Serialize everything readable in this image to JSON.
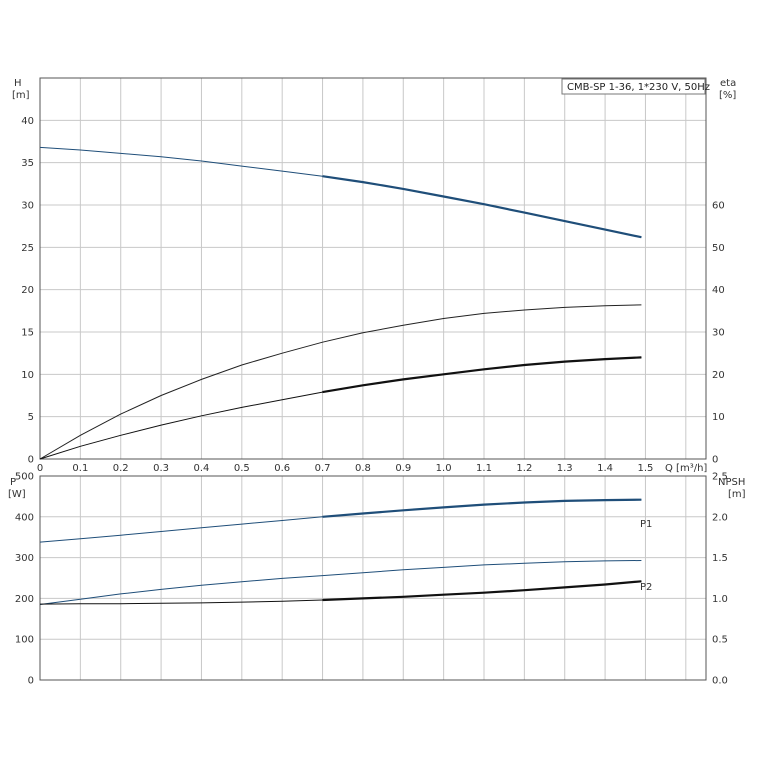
{
  "chart_data": [
    {
      "type": "line",
      "legend": "CMB-SP 1-36, 1*230 V, 50Hz",
      "legend_placement": "top-right",
      "grid": true,
      "xlabel": "Q [m³/h]",
      "xlim": [
        0,
        1.65
      ],
      "xticks": [
        "0",
        "0.1",
        "0.2",
        "0.3",
        "0.4",
        "0.5",
        "0.6",
        "0.7",
        "0.8",
        "0.9",
        "1.0",
        "1.1",
        "1.2",
        "1.3",
        "1.4",
        "1.5"
      ],
      "ylabel_left": "H",
      "yunit_left": "[m]",
      "ylim_left": [
        0,
        45
      ],
      "yticks_left": [
        "0",
        "5",
        "10",
        "15",
        "20",
        "25",
        "30",
        "35",
        "40"
      ],
      "ylabel_right": "eta",
      "yunit_right": "[%]",
      "ylim_right": [
        0,
        90
      ],
      "yticks_right": [
        "0",
        "10",
        "20",
        "30",
        "40",
        "50",
        "60"
      ],
      "series": [
        {
          "axis": "left",
          "color": "#1f4e79",
          "x": [
            0,
            0.1,
            0.2,
            0.3,
            0.4,
            0.5,
            0.6,
            0.7,
            0.8,
            0.9,
            1.0,
            1.1,
            1.2,
            1.3,
            1.4,
            1.49
          ],
          "values": [
            36.8,
            36.5,
            36.1,
            35.7,
            35.2,
            34.6,
            34.0,
            33.4,
            32.7,
            31.9,
            31.0,
            30.1,
            29.1,
            28.1,
            27.1,
            26.2
          ],
          "bold_from": 0.7
        },
        {
          "axis": "right",
          "color": "#222222",
          "x": [
            0,
            0.1,
            0.2,
            0.3,
            0.4,
            0.5,
            0.6,
            0.7,
            0.8,
            0.9,
            1.0,
            1.1,
            1.2,
            1.3,
            1.4,
            1.49
          ],
          "values": [
            0,
            5.6,
            10.6,
            15.0,
            18.8,
            22.2,
            25.0,
            27.6,
            29.8,
            31.6,
            33.2,
            34.4,
            35.2,
            35.8,
            36.2,
            36.4
          ],
          "bold_from": null
        },
        {
          "axis": "left",
          "color": "#111111",
          "x": [
            0,
            0.1,
            0.2,
            0.3,
            0.4,
            0.5,
            0.6,
            0.7,
            0.8,
            0.9,
            1.0,
            1.1,
            1.2,
            1.3,
            1.4,
            1.49
          ],
          "values": [
            0,
            1.5,
            2.8,
            4.0,
            5.1,
            6.1,
            7.0,
            7.9,
            8.7,
            9.4,
            10.0,
            10.6,
            11.1,
            11.5,
            11.8,
            12.0
          ],
          "bold_from": 0.7
        }
      ]
    },
    {
      "type": "line",
      "grid": true,
      "xlim": [
        0,
        1.65
      ],
      "ylabel_left": "P",
      "yunit_left": "[W]",
      "ylim_left": [
        0,
        500
      ],
      "yticks_left": [
        "0",
        "100",
        "200",
        "300",
        "400",
        "500"
      ],
      "ylabel_right": "NPSH",
      "yunit_right": "[m]",
      "ylim_right": [
        0,
        2.5
      ],
      "yticks_right": [
        "0.0",
        "0.5",
        "1.0",
        "1.5",
        "2.0",
        "2.5"
      ],
      "series": [
        {
          "name": "P1",
          "axis": "left",
          "color": "#1f4e79",
          "x": [
            0,
            0.1,
            0.2,
            0.3,
            0.4,
            0.5,
            0.6,
            0.7,
            0.8,
            0.9,
            1.0,
            1.1,
            1.2,
            1.3,
            1.4,
            1.49
          ],
          "values": [
            338,
            346,
            355,
            364,
            373,
            382,
            391,
            400,
            408,
            416,
            423,
            430,
            435,
            439,
            441,
            442
          ],
          "bold_from": 0.7
        },
        {
          "name": "P2",
          "axis": "left",
          "color": "#1f4e79",
          "x": [
            0,
            0.1,
            0.2,
            0.3,
            0.4,
            0.5,
            0.6,
            0.7,
            0.8,
            0.9,
            1.0,
            1.1,
            1.2,
            1.3,
            1.4,
            1.49
          ],
          "values": [
            185,
            198,
            211,
            222,
            232,
            241,
            249,
            256,
            263,
            270,
            276,
            282,
            286,
            290,
            292,
            293
          ],
          "bold_from": null
        },
        {
          "axis": "right",
          "color": "#111111",
          "x": [
            0,
            0.1,
            0.2,
            0.3,
            0.4,
            0.5,
            0.6,
            0.7,
            0.8,
            0.9,
            1.0,
            1.1,
            1.2,
            1.3,
            1.4,
            1.49
          ],
          "values": [
            0.93,
            0.935,
            0.935,
            0.94,
            0.945,
            0.955,
            0.965,
            0.98,
            1.0,
            1.02,
            1.045,
            1.07,
            1.1,
            1.135,
            1.17,
            1.21
          ],
          "bold_from": 0.7
        }
      ]
    }
  ]
}
